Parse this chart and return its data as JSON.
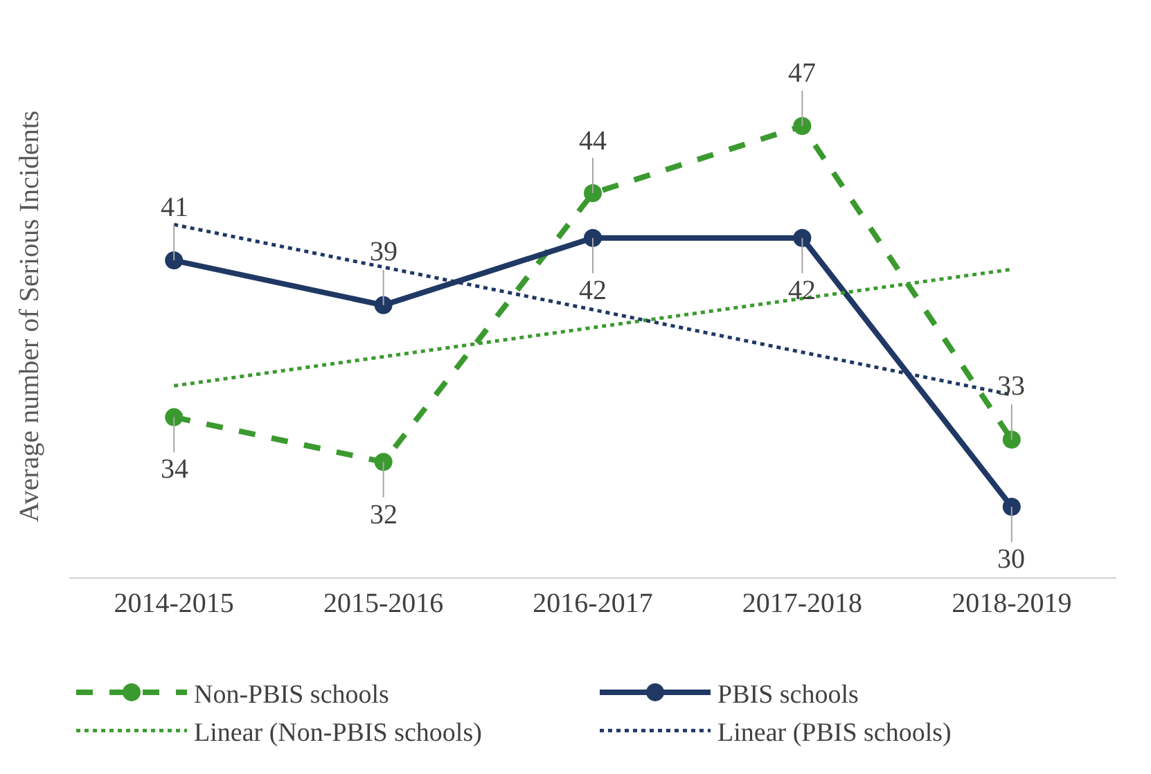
{
  "chart_data": {
    "type": "line",
    "ylabel": "Average number of Serious Incidents",
    "categories": [
      "2014-2015",
      "2015-2016",
      "2016-2017",
      "2017-2018",
      "2018-2019"
    ],
    "tick_labels": "x",
    "legend": "bottom",
    "series": [
      {
        "name": "Non-PBIS schools",
        "color": "#3b9a2f",
        "values": [
          34,
          32,
          44,
          47,
          33
        ],
        "line_style": "dashed",
        "marker": "circle",
        "value_labels": [
          "34",
          "32",
          "44",
          "47",
          "33"
        ]
      },
      {
        "name": "PBIS schools",
        "color": "#1f3864",
        "values": [
          41,
          39,
          42,
          42,
          30
        ],
        "line_style": "solid",
        "marker": "circle",
        "value_labels": [
          "41",
          "39",
          "42",
          "42",
          "30"
        ]
      },
      {
        "name": "Linear (Non-PBIS schools)",
        "color": "#3b9a2f",
        "values": [
          35.4,
          36.7,
          38,
          39.3,
          40.6
        ],
        "line_style": "dotted",
        "marker": "none"
      },
      {
        "name": "Linear (PBIS schools)",
        "color": "#1f3864",
        "values": [
          42.6,
          40.7,
          38.8,
          36.9,
          35.0
        ],
        "line_style": "dotted",
        "marker": "none"
      }
    ]
  }
}
